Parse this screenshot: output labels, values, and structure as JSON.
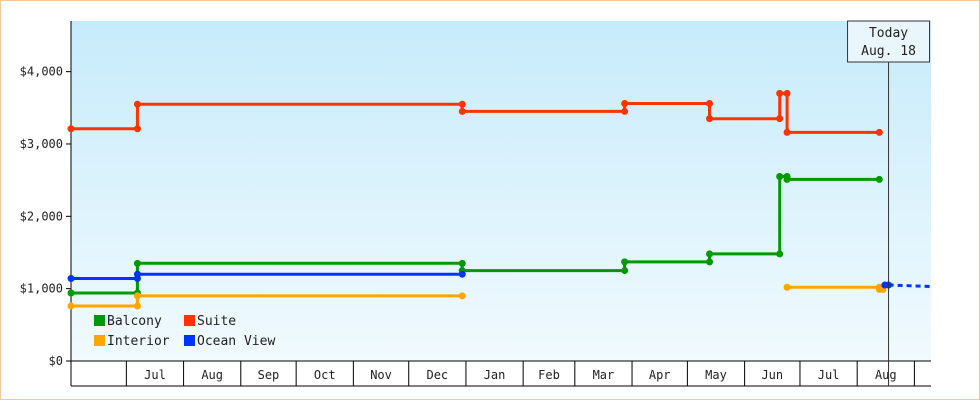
{
  "chart_data": {
    "type": "line",
    "step": true,
    "ylim": [
      0,
      4700
    ],
    "y_ticks": [
      {
        "value": 0,
        "label": "$0"
      },
      {
        "value": 1000,
        "label": "$1,000"
      },
      {
        "value": 2000,
        "label": "$2,000"
      },
      {
        "value": 3000,
        "label": "$3,000"
      },
      {
        "value": 4000,
        "label": "$4,000"
      }
    ],
    "xlim": [
      "2020-06-01",
      "2021-09-10"
    ],
    "x_month_labels": [
      {
        "label": "Jul",
        "date": "2020-07-01"
      },
      {
        "label": "Aug",
        "date": "2020-08-01"
      },
      {
        "label": "Sep",
        "date": "2020-09-01"
      },
      {
        "label": "Oct",
        "date": "2020-10-01"
      },
      {
        "label": "Nov",
        "date": "2020-11-01"
      },
      {
        "label": "Dec",
        "date": "2020-12-01"
      },
      {
        "label": "Jan",
        "date": "2021-01-01"
      },
      {
        "label": "Feb",
        "date": "2021-02-01"
      },
      {
        "label": "Mar",
        "date": "2021-03-01"
      },
      {
        "label": "Apr",
        "date": "2021-04-01"
      },
      {
        "label": "May",
        "date": "2021-05-01"
      },
      {
        "label": "Jun",
        "date": "2021-06-01"
      },
      {
        "label": "Jul",
        "date": "2021-07-01"
      },
      {
        "label": "Aug",
        "date": "2021-08-01"
      }
    ],
    "today": {
      "line1": "Today",
      "line2": "Aug. 18",
      "date": "2021-08-18"
    },
    "legend_position": "bottom-left",
    "series": [
      {
        "name": "Suite",
        "color": "#ff3300",
        "segments": [
          [
            [
              "2020-06-01",
              3210
            ],
            [
              "2020-07-07",
              3210
            ],
            [
              "2020-07-07",
              3550
            ],
            [
              "2020-12-30",
              3550
            ],
            [
              "2020-12-30",
              3450
            ],
            [
              "2021-03-28",
              3450
            ],
            [
              "2021-03-28",
              3560
            ],
            [
              "2021-05-13",
              3560
            ],
            [
              "2021-05-13",
              3350
            ],
            [
              "2021-06-20",
              3350
            ],
            [
              "2021-06-20",
              3700
            ],
            [
              "2021-06-24",
              3700
            ],
            [
              "2021-06-24",
              3160
            ],
            [
              "2021-08-13",
              3160
            ]
          ]
        ]
      },
      {
        "name": "Balcony",
        "color": "#009900",
        "segments": [
          [
            [
              "2020-06-01",
              940
            ],
            [
              "2020-07-07",
              940
            ],
            [
              "2020-07-07",
              1350
            ],
            [
              "2020-12-30",
              1350
            ],
            [
              "2020-12-30",
              1250
            ],
            [
              "2021-03-28",
              1250
            ],
            [
              "2021-03-28",
              1370
            ],
            [
              "2021-05-13",
              1370
            ],
            [
              "2021-05-13",
              1480
            ],
            [
              "2021-06-20",
              1480
            ],
            [
              "2021-06-20",
              2550
            ],
            [
              "2021-06-24",
              2550
            ],
            [
              "2021-06-24",
              2510
            ],
            [
              "2021-08-13",
              2510
            ]
          ]
        ]
      },
      {
        "name": "Interior",
        "color": "#ffa500",
        "segments": [
          [
            [
              "2020-06-01",
              760
            ],
            [
              "2020-07-07",
              760
            ],
            [
              "2020-07-07",
              900
            ],
            [
              "2020-12-30",
              900
            ]
          ],
          [
            [
              "2021-06-24",
              1020
            ],
            [
              "2021-08-13",
              1020
            ],
            [
              "2021-08-13",
              990
            ],
            [
              "2021-08-15",
              990
            ]
          ]
        ]
      },
      {
        "name": "Ocean View",
        "color": "#0033ff",
        "segments": [
          [
            [
              "2020-06-01",
              1140
            ],
            [
              "2020-07-07",
              1140
            ],
            [
              "2020-07-07",
              1200
            ],
            [
              "2020-12-30",
              1200
            ]
          ],
          [
            [
              "2021-08-16",
              1050
            ],
            [
              "2021-08-18",
              1050
            ]
          ]
        ],
        "projection": [
          [
            "2021-08-18",
            1050
          ],
          [
            "2021-09-10",
            1030
          ]
        ]
      }
    ],
    "legend_order": [
      "Balcony",
      "Suite",
      "Interior",
      "Ocean View"
    ]
  }
}
